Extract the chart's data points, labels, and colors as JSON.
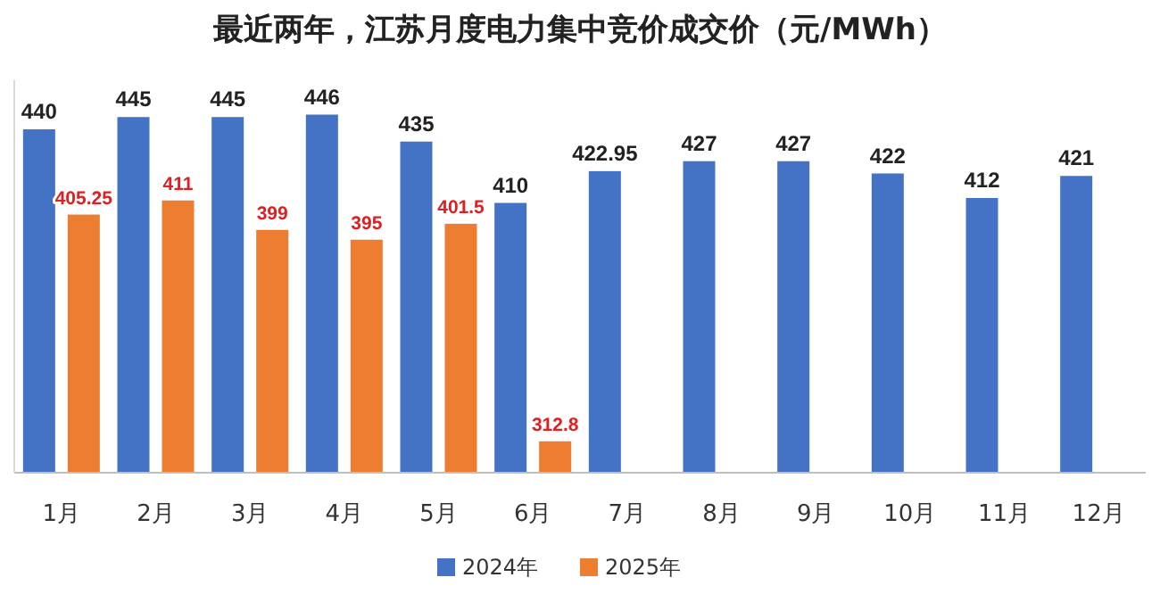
{
  "chart_data": {
    "type": "bar",
    "title": "最近两年，江苏月度电力集中竞价成交价（元/MWh）",
    "categories": [
      "1月",
      "2月",
      "3月",
      "4月",
      "5月",
      "6月",
      "7月",
      "8月",
      "9月",
      "10月",
      "11月",
      "12月"
    ],
    "series": [
      {
        "name": "2024年",
        "color": "#4472c4",
        "values": [
          440,
          445,
          445,
          446,
          435,
          410,
          422.95,
          427,
          427,
          422,
          412,
          421
        ]
      },
      {
        "name": "2025年",
        "color": "#ed7d31",
        "values": [
          405.25,
          411,
          399,
          395,
          401.5,
          312.8,
          null,
          null,
          null,
          null,
          null,
          null
        ]
      }
    ],
    "ylim": [
      300,
      460
    ],
    "data_labels": true,
    "legend": "bottom"
  }
}
